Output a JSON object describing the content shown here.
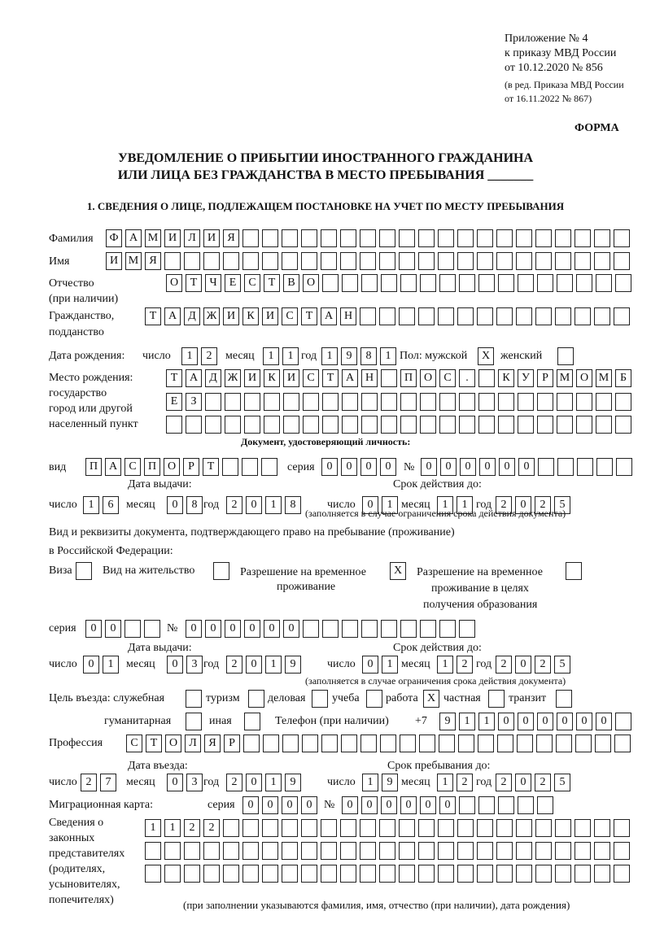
{
  "header": {
    "line1": "Приложение № 4",
    "line2": "к приказу МВД России",
    "line3": "от 10.12.2020 № 856",
    "line4": "(в ред. Приказа МВД России",
    "line5": "от 16.11.2022 № 867)",
    "form": "ФОРМА"
  },
  "title": {
    "line1": "УВЕДОМЛЕНИЕ О ПРИБЫТИИ ИНОСТРАННОГО ГРАЖДАНИНА",
    "line2": "ИЛИ ЛИЦА БЕЗ ГРАЖДАНСТВА В МЕСТО ПРЕБЫВАНИЯ _______"
  },
  "section1": "1. СВЕДЕНИЯ О ЛИЦЕ, ПОДЛЕЖАЩЕМ ПОСТАНОВКЕ НА УЧЕТ ПО МЕСТУ ПРЕБЫВАНИЯ",
  "labels": {
    "surname": "Фамилия",
    "name": "Имя",
    "patronymic1": "Отчество",
    "patronymic2": "(при наличии)",
    "citizenship1": "Гражданство,",
    "citizenship2": "подданство",
    "birth_date": "Дата рождения:",
    "day": "число",
    "month": "месяц",
    "year": "год",
    "sex": "Пол: мужской",
    "female": "женский",
    "birthplace1": "Место рождения:",
    "birthplace2": "государство",
    "birthplace3": "город или другой",
    "birthplace4": "населенный пункт",
    "id_doc": "Документ, удостоверяющий личность:",
    "kind": "вид",
    "series": "серия",
    "number": "№",
    "issue_date": "Дата выдачи:",
    "valid_until": "Срок действия до:",
    "valid_note": "(заполняется в случае ограничения срока действия документа)",
    "right_doc1": "Вид и реквизиты документа, подтверждающего право на пребывание (проживание)",
    "right_doc2": "в Российской Федерации:",
    "visa": "Виза",
    "residence": "Вид на жительство",
    "temp1": "Разрешение на временное",
    "temp2": "проживание",
    "edu1": "Разрешение на временное",
    "edu2": "проживание в целях",
    "edu3": "получения образования",
    "purpose": "Цель въезда: служебная",
    "tourism": "туризм",
    "business": "деловая",
    "study": "учеба",
    "work": "работа",
    "private": "частная",
    "transit": "транзит",
    "humanitarian": "гуманитарная",
    "other": "иная",
    "phone": "Телефон (при наличии)",
    "phone_prefix": "+7",
    "profession": "Профессия",
    "entry_date": "Дата въезда:",
    "stay_until": "Срок пребывания до:",
    "migration_card": "Миграционная карта:",
    "rep1": "Сведения о",
    "rep2": "законных",
    "rep3": "представителях",
    "rep4": "(родителях,",
    "rep5": "усыновителях,",
    "rep6": "попечителях)",
    "rep_note": "(при заполнении указываются фамилия, имя, отчество (при наличии), дата рождения)"
  },
  "fields": {
    "surname": [
      "Ф",
      "А",
      "М",
      "И",
      "Л",
      "И",
      "Я"
    ],
    "name": [
      "И",
      "М",
      "Я"
    ],
    "patronymic": [
      "О",
      "Т",
      "Ч",
      "Е",
      "С",
      "Т",
      "В",
      "О"
    ],
    "citizenship": [
      "Т",
      "А",
      "Д",
      "Ж",
      "И",
      "К",
      "И",
      "С",
      "Т",
      "А",
      "Н"
    ],
    "birth_day": [
      "1",
      "2"
    ],
    "birth_month": [
      "1",
      "1"
    ],
    "birth_year": [
      "1",
      "9",
      "8",
      "1"
    ],
    "sex_male": [
      "X"
    ],
    "sex_female": [
      ""
    ],
    "birthplace1": [
      "Т",
      "А",
      "Д",
      "Ж",
      "И",
      "К",
      "И",
      "С",
      "Т",
      "А",
      "Н",
      "",
      "П",
      "О",
      "С",
      ".",
      "",
      "К",
      "У",
      "Р",
      "М",
      "О",
      "М",
      "Б"
    ],
    "birthplace2": [
      "Е",
      "З"
    ],
    "birthplace3": [],
    "doc_kind": [
      "П",
      "А",
      "С",
      "П",
      "О",
      "Р",
      "Т"
    ],
    "doc_series": [
      "0",
      "0",
      "0",
      "0"
    ],
    "doc_number": [
      "0",
      "0",
      "0",
      "0",
      "0",
      "0"
    ],
    "doc_issue_day": [
      "1",
      "6"
    ],
    "doc_issue_month": [
      "0",
      "8"
    ],
    "doc_issue_year": [
      "2",
      "0",
      "1",
      "8"
    ],
    "doc_valid_day": [
      "0",
      "1"
    ],
    "doc_valid_month": [
      "1",
      "1"
    ],
    "doc_valid_year": [
      "2",
      "0",
      "2",
      "5"
    ],
    "visa": [
      ""
    ],
    "residence": [
      ""
    ],
    "temp_residence": [
      "X"
    ],
    "edu_residence": [
      ""
    ],
    "right_series": [
      "0",
      "0"
    ],
    "right_number": [
      "0",
      "0",
      "0",
      "0",
      "0",
      "0"
    ],
    "right_issue_day": [
      "0",
      "1"
    ],
    "right_issue_month": [
      "0",
      "3"
    ],
    "right_issue_year": [
      "2",
      "0",
      "1",
      "9"
    ],
    "right_valid_day": [
      "0",
      "1"
    ],
    "right_valid_month": [
      "1",
      "2"
    ],
    "right_valid_year": [
      "2",
      "0",
      "2",
      "5"
    ],
    "p_service": [
      ""
    ],
    "p_tourism": [
      ""
    ],
    "p_business": [
      ""
    ],
    "p_study": [
      ""
    ],
    "p_work": [
      "X"
    ],
    "p_private": [
      ""
    ],
    "p_transit": [
      ""
    ],
    "p_humanitarian": [
      ""
    ],
    "p_other": [
      ""
    ],
    "phone": [
      "9",
      "1",
      "1",
      "0",
      "0",
      "0",
      "0",
      "0",
      "0"
    ],
    "profession": [
      "С",
      "Т",
      "О",
      "Л",
      "Я",
      "Р"
    ],
    "entry_day": [
      "2",
      "7"
    ],
    "entry_month": [
      "0",
      "3"
    ],
    "entry_year": [
      "2",
      "0",
      "1",
      "9"
    ],
    "stay_day": [
      "1",
      "9"
    ],
    "stay_month": [
      "1",
      "2"
    ],
    "stay_year": [
      "2",
      "0",
      "2",
      "5"
    ],
    "mc_series": [
      "0",
      "0",
      "0",
      "0"
    ],
    "mc_number": [
      "0",
      "0",
      "0",
      "0",
      "0",
      "0"
    ],
    "rep1": [
      "1",
      "1",
      "2",
      "2"
    ],
    "rep2": [],
    "rep3": []
  }
}
